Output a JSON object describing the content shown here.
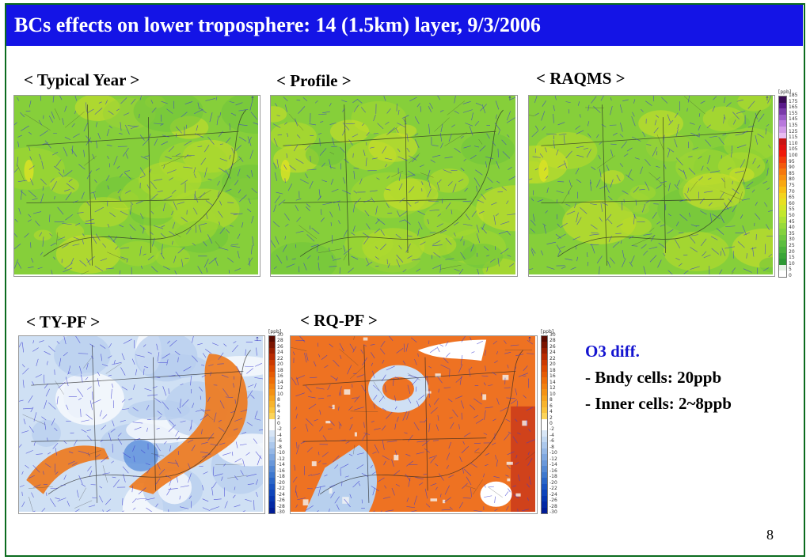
{
  "slide": {
    "title": "BCs effects on lower troposphere:  14 (1.5km) layer, 9/3/2006",
    "page_number": "8"
  },
  "panels": {
    "typical_year": {
      "label": "< Typical Year >",
      "type": "ozone"
    },
    "profile": {
      "label": "< Profile >",
      "type": "ozone"
    },
    "raqms": {
      "label": "< RAQMS >",
      "type": "ozone"
    },
    "ty_pf": {
      "label": "< TY-PF >",
      "type": "diff"
    },
    "rq_pf": {
      "label": "< RQ-PF >",
      "type": "diff"
    }
  },
  "colorbars": {
    "ozone": {
      "unit": "[ppb]",
      "ticks": [
        "185",
        "175",
        "165",
        "155",
        "145",
        "135",
        "125",
        "115",
        "110",
        "105",
        "100",
        "95",
        "90",
        "85",
        "80",
        "75",
        "70",
        "65",
        "60",
        "55",
        "50",
        "45",
        "40",
        "35",
        "30",
        "25",
        "20",
        "15",
        "10",
        "5",
        "0"
      ],
      "colors": [
        "#3a0a55",
        "#5a1a8a",
        "#7a3aaa",
        "#9a5ac8",
        "#b878dc",
        "#d29ae8",
        "#e8bdf2",
        "#c81212",
        "#e01010",
        "#f01a0a",
        "#f23c0a",
        "#f45a0c",
        "#f6780e",
        "#f89010",
        "#f8a812",
        "#f8bf14",
        "#f4d41c",
        "#e8e020",
        "#d6e626",
        "#c2e82c",
        "#aee234",
        "#98da3a",
        "#84d23e",
        "#70c840",
        "#5cbe40",
        "#4ab23c",
        "#3aa638",
        "#2e9a34",
        "#e6f2e6",
        "#ffffff"
      ]
    },
    "diff": {
      "unit": "[ppb]",
      "ticks": [
        "30",
        "28",
        "26",
        "24",
        "22",
        "20",
        "18",
        "16",
        "14",
        "12",
        "10",
        "8",
        "6",
        "4",
        "2",
        "0",
        "-2",
        "-4",
        "-6",
        "-8",
        "-10",
        "-12",
        "-14",
        "-16",
        "-18",
        "-20",
        "-22",
        "-24",
        "-26",
        "-28",
        "-30"
      ],
      "colors": [
        "#5a0a00",
        "#7a1400",
        "#9a1e00",
        "#b82a00",
        "#cc3a00",
        "#dc4a00",
        "#e65c04",
        "#ee6e08",
        "#f2800e",
        "#f49214",
        "#f6a41e",
        "#f8b42c",
        "#fac43e",
        "#fcd45a",
        "#ffffff",
        "#ffffff",
        "#d8e6f6",
        "#c2d8f2",
        "#acc8ec",
        "#96b8e6",
        "#80a8e0",
        "#6a98da",
        "#5488d4",
        "#3e78ce",
        "#2a66c8",
        "#1a54c2",
        "#0e44ba",
        "#0636b0",
        "#0228a4",
        "#001c96"
      ]
    }
  },
  "notes": {
    "heading": "O3 diff.",
    "lines": [
      "- Bndy cells: 20ppb",
      "- Inner cells:  2~8ppb"
    ]
  }
}
